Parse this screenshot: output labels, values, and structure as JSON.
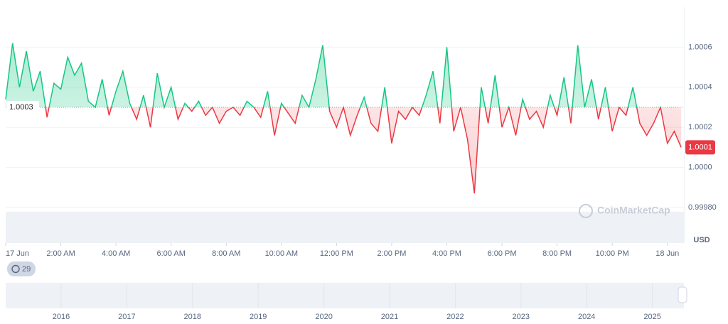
{
  "chart_data": {
    "type": "line",
    "x": [
      0,
      0.25,
      0.5,
      0.75,
      1,
      1.25,
      1.5,
      1.75,
      2,
      2.25,
      2.5,
      2.75,
      3,
      3.25,
      3.5,
      3.75,
      4,
      4.25,
      4.5,
      4.75,
      5,
      5.25,
      5.5,
      5.75,
      6,
      6.25,
      6.5,
      6.75,
      7,
      7.25,
      7.5,
      7.75,
      8,
      8.25,
      8.5,
      8.75,
      9,
      9.25,
      9.5,
      9.75,
      10,
      10.25,
      10.5,
      10.75,
      11,
      11.25,
      11.5,
      11.75,
      12,
      12.25,
      12.5,
      12.75,
      13,
      13.25,
      13.5,
      13.75,
      14,
      14.25,
      14.5,
      14.75,
      15,
      15.25,
      15.5,
      15.75,
      16,
      16.25,
      16.5,
      16.75,
      17,
      17.25,
      17.5,
      17.75,
      18,
      18.25,
      18.5,
      18.75,
      19,
      19.25,
      19.5,
      19.75,
      20,
      20.25,
      20.5,
      20.75,
      21,
      21.25,
      21.5,
      21.75,
      22,
      22.25,
      22.5,
      22.75,
      23,
      23.25,
      23.5,
      23.75,
      24,
      24.25,
      24.5
    ],
    "values": [
      1.00034,
      1.00062,
      1.0004,
      1.00058,
      1.00038,
      1.00048,
      1.00025,
      1.00042,
      1.00039,
      1.00055,
      1.00046,
      1.00052,
      1.00033,
      1.0003,
      1.00044,
      1.00026,
      1.00038,
      1.00048,
      1.00032,
      1.00024,
      1.00036,
      1.0002,
      1.00047,
      1.0003,
      1.0004,
      1.00024,
      1.00032,
      1.00028,
      1.00033,
      1.00026,
      1.0003,
      1.00022,
      1.00028,
      1.0003,
      1.00026,
      1.00033,
      1.0003,
      1.00025,
      1.00038,
      1.00016,
      1.00032,
      1.00027,
      1.00022,
      1.00036,
      1.0003,
      1.00044,
      1.00061,
      1.00028,
      1.0002,
      1.0003,
      1.00016,
      1.00026,
      1.00035,
      1.00022,
      1.00018,
      1.0004,
      1.00012,
      1.00028,
      1.00024,
      1.0003,
      1.00026,
      1.00036,
      1.00048,
      1.00022,
      1.0006,
      1.00018,
      1.0003,
      1.00014,
      0.99987,
      1.0004,
      1.00022,
      1.00046,
      1.0002,
      1.0003,
      1.00016,
      1.00034,
      1.00024,
      1.00028,
      1.0002,
      1.00036,
      1.00026,
      1.00045,
      1.00022,
      1.00061,
      1.0003,
      1.00044,
      1.00024,
      1.0004,
      1.00018,
      1.0003,
      1.00026,
      1.0004,
      1.00022,
      1.00016,
      1.00022,
      1.0003,
      1.00012,
      1.00018,
      1.0001
    ],
    "up_color": "#16c784",
    "down_color": "#ea3943",
    "baseline": 1.0003,
    "last_price": 1.0001,
    "currency": "USD",
    "ylim": [
      0.9998,
      1.0008
    ],
    "yticks": [
      {
        "value": 0.9998,
        "label": "0.99980"
      },
      {
        "value": 1,
        "label": "1.0000"
      },
      1.0002,
      1.0004,
      1.0006
    ],
    "xlim": [
      0,
      24.6
    ],
    "xticks": [
      {
        "value": 0,
        "label": "17 Jun"
      },
      {
        "value": 2,
        "label": "2:00 AM"
      },
      {
        "value": 4,
        "label": "4:00 AM"
      },
      {
        "value": 6,
        "label": "6:00 AM"
      },
      {
        "value": 8,
        "label": "8:00 AM"
      },
      {
        "value": 10,
        "label": "10:00 AM"
      },
      {
        "value": 12,
        "label": "12:00 PM"
      },
      {
        "value": 14,
        "label": "2:00 PM"
      },
      {
        "value": 16,
        "label": "4:00 PM"
      },
      {
        "value": 18,
        "label": "6:00 PM"
      },
      {
        "value": 20,
        "label": "8:00 PM"
      },
      {
        "value": 22,
        "label": "10:00 PM"
      },
      {
        "value": 24,
        "label": "18 Jun"
      }
    ],
    "grid": true,
    "watermark": "CoinMarketCap",
    "badge": 29,
    "navigator_years": [
      "2016",
      "2017",
      "2018",
      "2019",
      "2020",
      "2021",
      "2022",
      "2023",
      "2024",
      "2025"
    ]
  }
}
